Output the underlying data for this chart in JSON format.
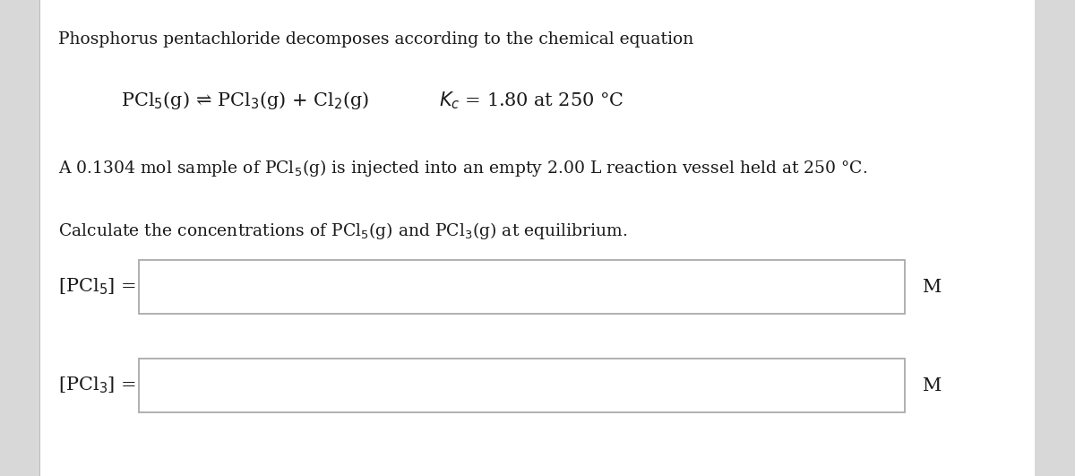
{
  "bg_color": "#ffffff",
  "panel_color": "#ffffff",
  "left_strip_color": "#e0e0e0",
  "text_color": "#1a1a1a",
  "title_text": "Phosphorus pentachloride decomposes according to the chemical equation",
  "equation_left": "PCl$_5$(g) ⇌ PCl$_3$(g) + Cl$_2$(g)",
  "kc_text": "$K_c$ = 1.80 at 250 °C",
  "sample_text": "A 0.1304 mol sample of PCl$_5$(g) is injected into an empty 2.00 L reaction vessel held at 250 °C.",
  "calc_text": "Calculate the concentrations of PCl$_5$(g) and PCl$_3$(g) at equilibrium.",
  "label1": "[PCl$_5$] =",
  "label2": "[PCl$_3$] =",
  "unit": "M",
  "font_size_title": 13.5,
  "font_size_body": 13.5,
  "font_size_eq": 15,
  "font_size_label": 15,
  "font_size_unit": 15,
  "box_edge_color": "#aaaaaa",
  "box_face_color": "#ffffff"
}
